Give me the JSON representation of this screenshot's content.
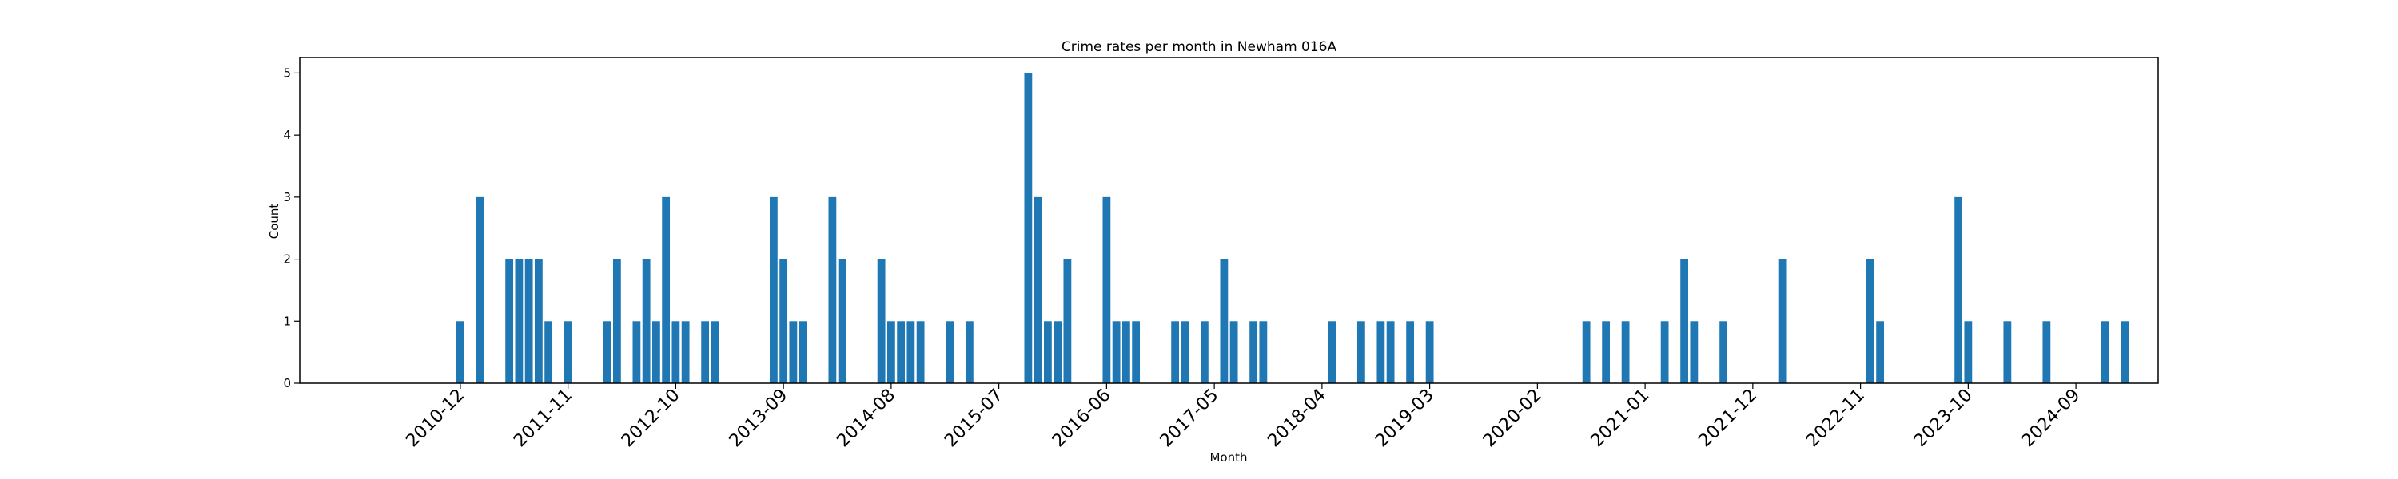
{
  "chart_data": {
    "type": "bar",
    "title": "Crime rates per month in Newham 016A",
    "xlabel": "Month",
    "ylabel": "Count",
    "ylim": [
      0,
      5.25
    ],
    "y_ticks": [
      0,
      1,
      2,
      3,
      4,
      5
    ],
    "x_tick_labels": [
      "2010-12",
      "2011-11",
      "2012-10",
      "2013-09",
      "2014-08",
      "2015-07",
      "2016-06",
      "2017-05",
      "2018-04",
      "2019-03",
      "2020-02",
      "2021-01",
      "2021-12",
      "2022-11",
      "2023-10",
      "2024-09"
    ],
    "bar_color": "#1f77b4",
    "series": [
      {
        "name": "Count",
        "x": [
          "2010-12",
          "2011-02",
          "2011-05",
          "2011-06",
          "2011-07",
          "2011-08",
          "2011-09",
          "2011-11",
          "2012-03",
          "2012-04",
          "2012-06",
          "2012-07",
          "2012-08",
          "2012-09",
          "2012-10",
          "2012-11",
          "2013-01",
          "2013-02",
          "2013-08",
          "2013-09",
          "2013-10",
          "2013-11",
          "2014-02",
          "2014-03",
          "2014-07",
          "2014-08",
          "2014-09",
          "2014-10",
          "2014-11",
          "2015-02",
          "2015-04",
          "2015-10",
          "2015-11",
          "2015-12",
          "2016-01",
          "2016-02",
          "2016-06",
          "2016-07",
          "2016-08",
          "2016-09",
          "2017-01",
          "2017-02",
          "2017-04",
          "2017-06",
          "2017-07",
          "2017-09",
          "2017-10",
          "2018-05",
          "2018-08",
          "2018-10",
          "2018-11",
          "2019-01",
          "2019-03",
          "2020-07",
          "2020-09",
          "2020-11",
          "2021-03",
          "2021-05",
          "2021-06",
          "2021-09",
          "2022-03",
          "2022-12",
          "2023-01",
          "2023-09",
          "2023-10",
          "2024-02",
          "2024-06",
          "2024-12",
          "2025-02"
        ],
        "values": [
          1,
          3,
          2,
          2,
          2,
          2,
          1,
          1,
          1,
          2,
          1,
          2,
          1,
          3,
          1,
          1,
          1,
          1,
          3,
          2,
          1,
          1,
          3,
          2,
          2,
          1,
          1,
          1,
          1,
          1,
          1,
          5,
          3,
          1,
          1,
          2,
          3,
          1,
          1,
          1,
          1,
          1,
          1,
          2,
          1,
          1,
          1,
          1,
          1,
          1,
          1,
          1,
          1,
          1,
          1,
          1,
          1,
          2,
          1,
          1,
          2,
          2,
          1,
          3,
          1,
          1,
          1,
          1,
          1
        ]
      }
    ]
  }
}
